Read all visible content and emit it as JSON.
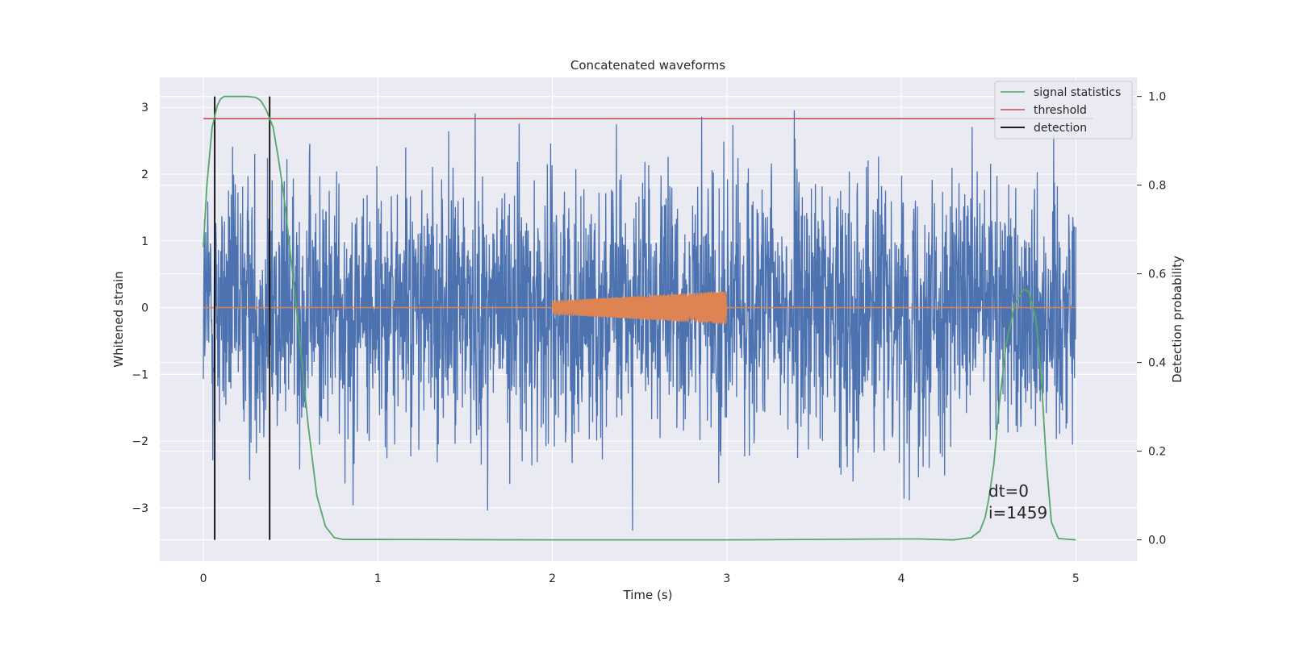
{
  "chart_data": {
    "type": "line",
    "title": "Concatenated waveforms",
    "xlabel": "Time (s)",
    "ylabel": "Whitened strain",
    "y2label": "Detection probability",
    "xlim": [
      -0.25,
      5.35
    ],
    "ylim": [
      -3.8,
      3.45
    ],
    "y2lim": [
      -0.048,
      1.043
    ],
    "xticks": [
      0,
      1,
      2,
      3,
      4,
      5
    ],
    "xtick_labels": [
      "0",
      "1",
      "2",
      "3",
      "4",
      "5"
    ],
    "yticks": [
      -3,
      -2,
      -1,
      0,
      1,
      2,
      3
    ],
    "ytick_labels": [
      "−3",
      "−2",
      "−1",
      "0",
      "1",
      "2",
      "3"
    ],
    "y2ticks": [
      0.0,
      0.2,
      0.4,
      0.6,
      0.8,
      1.0
    ],
    "y2tick_labels": [
      "0.0",
      "0.2",
      "0.4",
      "0.6",
      "0.8",
      "1.0"
    ],
    "grid": true,
    "legend_position": "top-right",
    "colors": {
      "strain": "#4c72b0",
      "injection": "#dd8452",
      "signal_statistics": "#55a868",
      "threshold": "#c44e52",
      "detection": "#000000",
      "plot_background": "#eaeaf2",
      "grid": "#ffffff"
    },
    "strain_noise": {
      "x_start": 0.0,
      "x_end": 5.0,
      "typical_amplitude": 1.6,
      "max_excursion": 3.1
    },
    "injection": {
      "x_start": 2.0,
      "x_end": 3.0,
      "amplitude_start": 0.1,
      "amplitude_end": 0.25
    },
    "threshold": {
      "y": 0.95,
      "x_start": 0.0,
      "x_end": 5.1
    },
    "detections": [
      0.065,
      0.38
    ],
    "signal_statistics": {
      "x": [
        0.0,
        0.02,
        0.05,
        0.08,
        0.1,
        0.12,
        0.15,
        0.2,
        0.25,
        0.3,
        0.33,
        0.36,
        0.4,
        0.43,
        0.46,
        0.5,
        0.55,
        0.6,
        0.65,
        0.7,
        0.75,
        0.8,
        1.0,
        2.0,
        3.0,
        4.0,
        4.1,
        4.3,
        4.4,
        4.45,
        4.48,
        4.5,
        4.53,
        4.56,
        4.6,
        4.65,
        4.7,
        4.73,
        4.77,
        4.8,
        4.83,
        4.86,
        4.9,
        5.0
      ],
      "y": [
        0.66,
        0.8,
        0.93,
        0.98,
        0.995,
        1.0,
        1.0,
        1.0,
        1.0,
        0.998,
        0.99,
        0.97,
        0.93,
        0.86,
        0.78,
        0.64,
        0.46,
        0.26,
        0.1,
        0.03,
        0.005,
        0.001,
        0.001,
        0.0,
        0.0,
        0.002,
        0.002,
        0.0,
        0.005,
        0.02,
        0.05,
        0.09,
        0.17,
        0.3,
        0.44,
        0.53,
        0.565,
        0.56,
        0.5,
        0.38,
        0.18,
        0.04,
        0.003,
        0.0
      ]
    },
    "legend": [
      "signal statistics",
      "threshold",
      "detection"
    ],
    "annotation": [
      "dt=0",
      "i=1459"
    ]
  }
}
